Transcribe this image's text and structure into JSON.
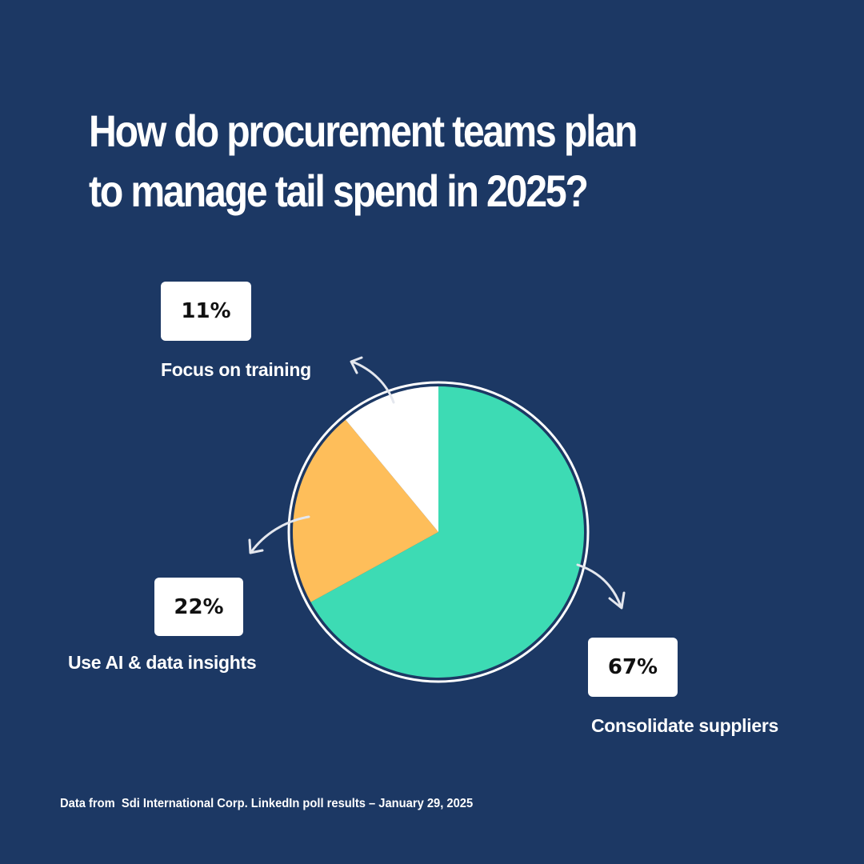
{
  "chart_data": {
    "type": "pie",
    "title_lines": [
      "How do procurement teams plan",
      "to manage tail spend in 2025?"
    ],
    "categories": [
      "Consolidate suppliers",
      "Use AI & data insights",
      "Focus on training"
    ],
    "values": [
      67,
      22,
      11
    ],
    "value_labels": [
      "67%",
      "22%",
      "11%"
    ],
    "unit": "%",
    "colors": [
      "#3ddbb4",
      "#febe5a",
      "#ffffff"
    ],
    "legend": "none",
    "annotations": {
      "source": "Data from  Sdi International Corp. LinkedIn poll results – January 29, 2025"
    }
  },
  "colors": {
    "background": "#1c3864",
    "text": "#ffffff",
    "box_text": "#111111"
  },
  "icons": [
    "curved-arrow-icon"
  ]
}
